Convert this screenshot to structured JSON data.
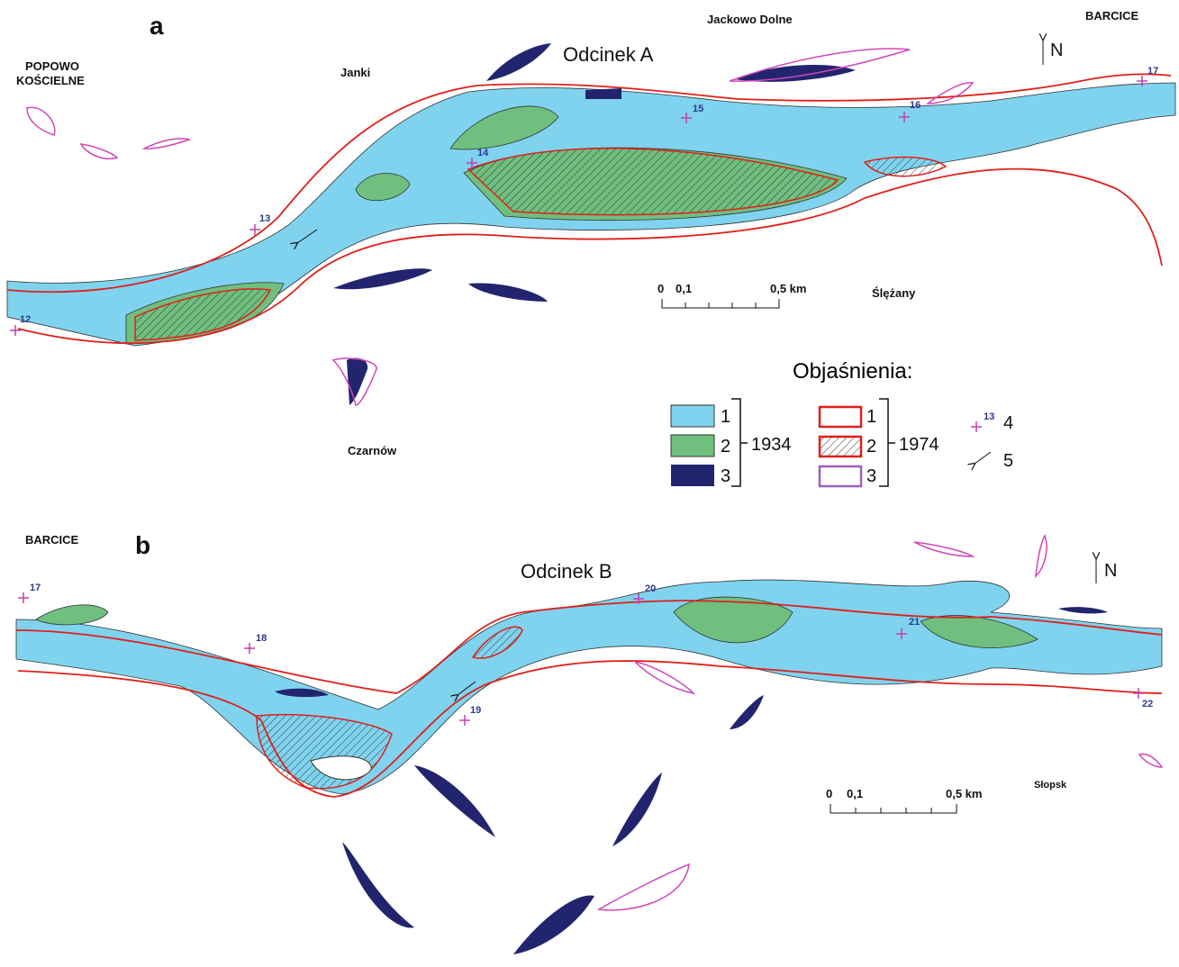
{
  "panel_a": {
    "label": "a",
    "title": "Odcinek A",
    "places": {
      "popowo": [
        "POPOWO",
        "KOŚCIELNE"
      ],
      "janki": "Janki",
      "jackowo": "Jackowo Dolne",
      "barcice": "BARCICE",
      "slezany": "Ślężany",
      "czarnow": "Czarnów"
    },
    "north": "N",
    "scale": [
      "0",
      "0,1",
      "0,5 km"
    ],
    "points": [
      "12",
      "13",
      "14",
      "15",
      "16",
      "17"
    ]
  },
  "legend": {
    "title": "Objaśnienia:",
    "group_1934": {
      "items": [
        "1",
        "2",
        "3"
      ],
      "year": "1934"
    },
    "group_1974": {
      "items": [
        "1",
        "2",
        "3"
      ],
      "year": "1974"
    },
    "point_sample": "13",
    "items": [
      "4",
      "5"
    ]
  },
  "panel_b": {
    "label": "b",
    "title": "Odcinek B",
    "places": {
      "barcice": "BARCICE",
      "slopsk": "Słopsk"
    },
    "north": "N",
    "scale": [
      "0",
      "0,1",
      "0,5 km"
    ],
    "points": [
      "17",
      "18",
      "19",
      "20",
      "21",
      "22"
    ]
  }
}
